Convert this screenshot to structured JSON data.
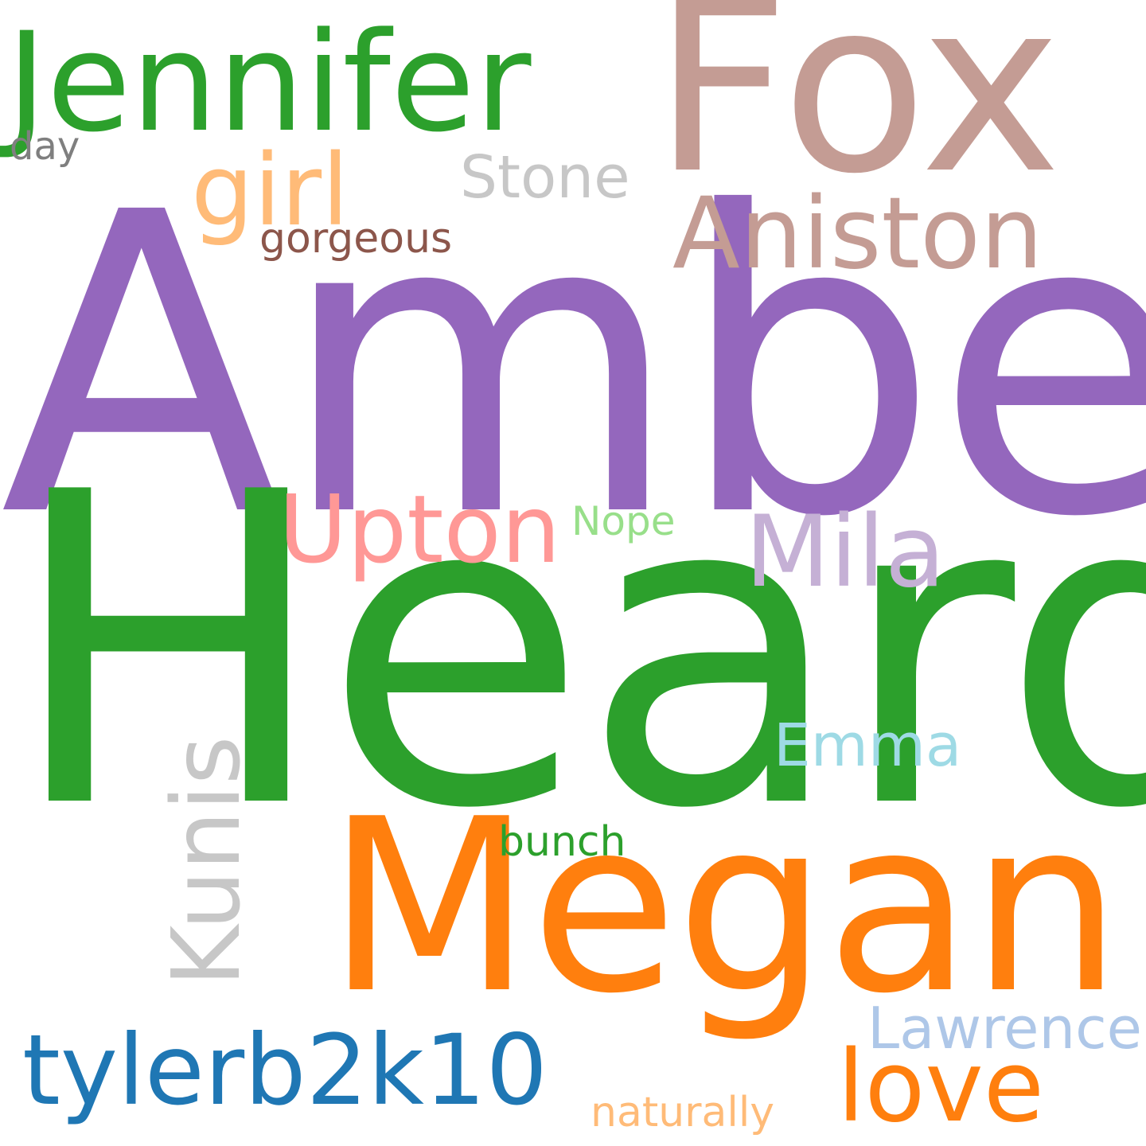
{
  "words": {
    "amber": {
      "text": "Amber",
      "color": "#9467bd"
    },
    "heard": {
      "text": "Heard",
      "color": "#2ca02c"
    },
    "fox": {
      "text": "Fox",
      "color": "#c49c94"
    },
    "megan": {
      "text": "Megan",
      "color": "#ff7f0e"
    },
    "jennifer": {
      "text": "Jennifer",
      "color": "#2ca02c"
    },
    "aniston": {
      "text": "Aniston",
      "color": "#c49c94"
    },
    "girl": {
      "text": "girl",
      "color": "#ffbb78"
    },
    "stone": {
      "text": "Stone",
      "color": "#c7c7c7"
    },
    "gorgeous": {
      "text": "gorgeous",
      "color": "#8c564b"
    },
    "day": {
      "text": "day",
      "color": "#7f7f7f"
    },
    "upton": {
      "text": "Upton",
      "color": "#ff9896"
    },
    "nope": {
      "text": "Nope",
      "color": "#98df8a"
    },
    "mila": {
      "text": "Mila",
      "color": "#c5b0d5"
    },
    "kunis": {
      "text": "Kunis",
      "color": "#c7c7c7"
    },
    "emma": {
      "text": "Emma",
      "color": "#9edae5"
    },
    "bunch": {
      "text": "bunch",
      "color": "#2ca02c"
    },
    "tylerb2k10": {
      "text": "tylerb2k10",
      "color": "#1f77b4"
    },
    "lawrence": {
      "text": "Lawrence",
      "color": "#aec7e8"
    },
    "love": {
      "text": "love",
      "color": "#ff7f0e"
    },
    "naturally": {
      "text": "naturally",
      "color": "#ffbb78"
    }
  }
}
